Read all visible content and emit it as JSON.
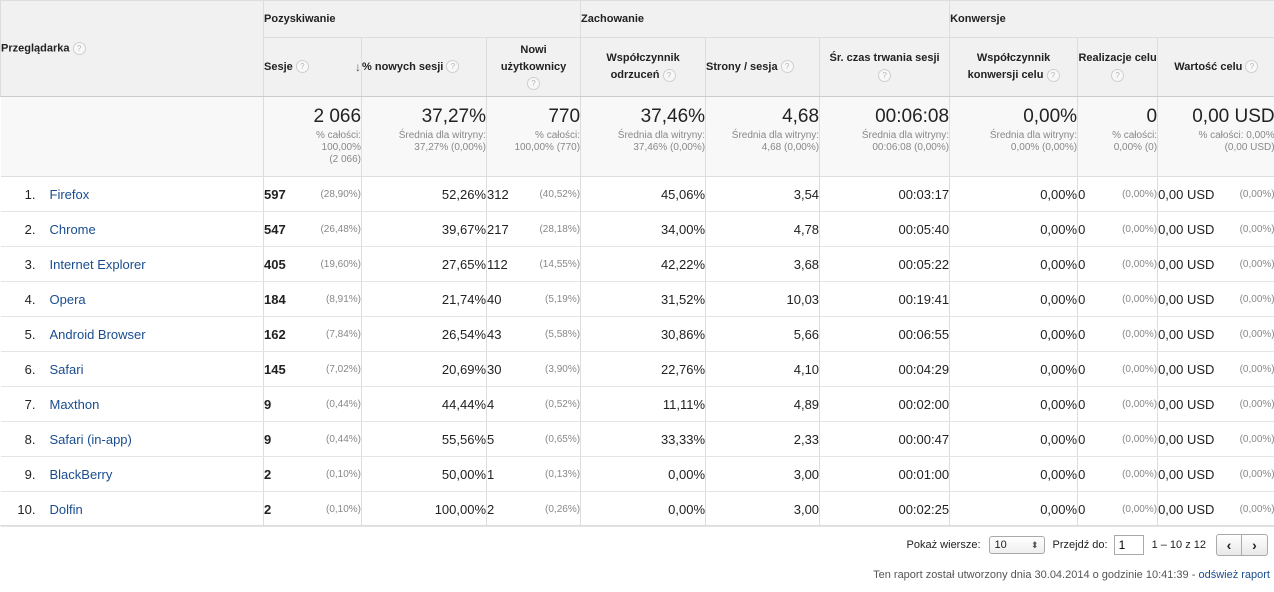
{
  "header": {
    "browser_label": "Przeglądarka",
    "groups": {
      "acquisition": "Pozyskiwanie",
      "behavior": "Zachowanie",
      "conversions": "Konwersje"
    },
    "columns": {
      "sessions": "Sesje",
      "new_sessions_pct": "% nowych sesji",
      "new_users": "Nowi użytkownicy",
      "bounce_rate": "Współczynnik odrzuceń",
      "pages_per_session": "Strony / sesja",
      "avg_duration": "Śr. czas trwania sesji",
      "goal_conv_rate": "Współczynnik konwersji celu",
      "goal_completions": "Realizacje celu",
      "goal_value": "Wartość celu"
    },
    "help_icon": "?",
    "sort_icon": "↓"
  },
  "totals": {
    "sessions": {
      "big": "2 066",
      "l1": "% całości:",
      "l2": "100,00%",
      "l3": "(2 066)"
    },
    "new_sessions_pct": {
      "big": "37,27%",
      "l1": "Średnia dla witryny:",
      "l2": "37,27% (0,00%)"
    },
    "new_users": {
      "big": "770",
      "l1": "% całości:",
      "l2": "100,00% (770)"
    },
    "bounce_rate": {
      "big": "37,46%",
      "l1": "Średnia dla witryny:",
      "l2": "37,46% (0,00%)"
    },
    "pages_per_session": {
      "big": "4,68",
      "l1": "Średnia dla witryny:",
      "l2": "4,68 (0,00%)"
    },
    "avg_duration": {
      "big": "00:06:08",
      "l1": "Średnia dla witryny:",
      "l2": "00:06:08 (0,00%)"
    },
    "goal_conv_rate": {
      "big": "0,00%",
      "l1": "Średnia dla witryny:",
      "l2": "0,00% (0,00%)"
    },
    "goal_completions": {
      "big": "0",
      "l1": "% całości:",
      "l2": "0,00% (0)"
    },
    "goal_value": {
      "big": "0,00 USD",
      "l1": "% całości: 0,00%",
      "l2": "(0,00 USD)"
    }
  },
  "rows": [
    {
      "idx": "1.",
      "name": "Firefox",
      "s": "597",
      "sp": "(28,90%)",
      "nsp": "52,26%",
      "nu": "312",
      "nup": "(40,52%)",
      "br": "45,06%",
      "pps": "3,54",
      "dur": "00:03:17",
      "gcr": "0,00%",
      "gc": "0",
      "gcp": "(0,00%)",
      "gv": "0,00 USD",
      "gvp": "(0,00%)"
    },
    {
      "idx": "2.",
      "name": "Chrome",
      "s": "547",
      "sp": "(26,48%)",
      "nsp": "39,67%",
      "nu": "217",
      "nup": "(28,18%)",
      "br": "34,00%",
      "pps": "4,78",
      "dur": "00:05:40",
      "gcr": "0,00%",
      "gc": "0",
      "gcp": "(0,00%)",
      "gv": "0,00 USD",
      "gvp": "(0,00%)"
    },
    {
      "idx": "3.",
      "name": "Internet Explorer",
      "s": "405",
      "sp": "(19,60%)",
      "nsp": "27,65%",
      "nu": "112",
      "nup": "(14,55%)",
      "br": "42,22%",
      "pps": "3,68",
      "dur": "00:05:22",
      "gcr": "0,00%",
      "gc": "0",
      "gcp": "(0,00%)",
      "gv": "0,00 USD",
      "gvp": "(0,00%)"
    },
    {
      "idx": "4.",
      "name": "Opera",
      "s": "184",
      "sp": "(8,91%)",
      "nsp": "21,74%",
      "nu": "40",
      "nup": "(5,19%)",
      "br": "31,52%",
      "pps": "10,03",
      "dur": "00:19:41",
      "gcr": "0,00%",
      "gc": "0",
      "gcp": "(0,00%)",
      "gv": "0,00 USD",
      "gvp": "(0,00%)"
    },
    {
      "idx": "5.",
      "name": "Android Browser",
      "s": "162",
      "sp": "(7,84%)",
      "nsp": "26,54%",
      "nu": "43",
      "nup": "(5,58%)",
      "br": "30,86%",
      "pps": "5,66",
      "dur": "00:06:55",
      "gcr": "0,00%",
      "gc": "0",
      "gcp": "(0,00%)",
      "gv": "0,00 USD",
      "gvp": "(0,00%)"
    },
    {
      "idx": "6.",
      "name": "Safari",
      "s": "145",
      "sp": "(7,02%)",
      "nsp": "20,69%",
      "nu": "30",
      "nup": "(3,90%)",
      "br": "22,76%",
      "pps": "4,10",
      "dur": "00:04:29",
      "gcr": "0,00%",
      "gc": "0",
      "gcp": "(0,00%)",
      "gv": "0,00 USD",
      "gvp": "(0,00%)"
    },
    {
      "idx": "7.",
      "name": "Maxthon",
      "s": "9",
      "sp": "(0,44%)",
      "nsp": "44,44%",
      "nu": "4",
      "nup": "(0,52%)",
      "br": "11,11%",
      "pps": "4,89",
      "dur": "00:02:00",
      "gcr": "0,00%",
      "gc": "0",
      "gcp": "(0,00%)",
      "gv": "0,00 USD",
      "gvp": "(0,00%)"
    },
    {
      "idx": "8.",
      "name": "Safari (in-app)",
      "s": "9",
      "sp": "(0,44%)",
      "nsp": "55,56%",
      "nu": "5",
      "nup": "(0,65%)",
      "br": "33,33%",
      "pps": "2,33",
      "dur": "00:00:47",
      "gcr": "0,00%",
      "gc": "0",
      "gcp": "(0,00%)",
      "gv": "0,00 USD",
      "gvp": "(0,00%)"
    },
    {
      "idx": "9.",
      "name": "BlackBerry",
      "s": "2",
      "sp": "(0,10%)",
      "nsp": "50,00%",
      "nu": "1",
      "nup": "(0,13%)",
      "br": "0,00%",
      "pps": "3,00",
      "dur": "00:01:00",
      "gcr": "0,00%",
      "gc": "0",
      "gcp": "(0,00%)",
      "gv": "0,00 USD",
      "gvp": "(0,00%)"
    },
    {
      "idx": "10.",
      "name": "Dolfin",
      "s": "2",
      "sp": "(0,10%)",
      "nsp": "100,00%",
      "nu": "2",
      "nup": "(0,26%)",
      "br": "0,00%",
      "pps": "3,00",
      "dur": "00:02:25",
      "gcr": "0,00%",
      "gc": "0",
      "gcp": "(0,00%)",
      "gv": "0,00 USD",
      "gvp": "(0,00%)"
    }
  ],
  "pagination": {
    "show_rows_label": "Pokaż wiersze:",
    "show_rows_value": "10",
    "goto_label": "Przejdź do:",
    "goto_value": "1",
    "range": "1 – 10 z 12",
    "prev": "‹",
    "next": "›",
    "select_arrows": "⬍"
  },
  "footer": {
    "generated": "Ten raport został utworzony dnia 30.04.2014 o godzinie 10:41:39 -",
    "refresh": "odśwież raport"
  }
}
